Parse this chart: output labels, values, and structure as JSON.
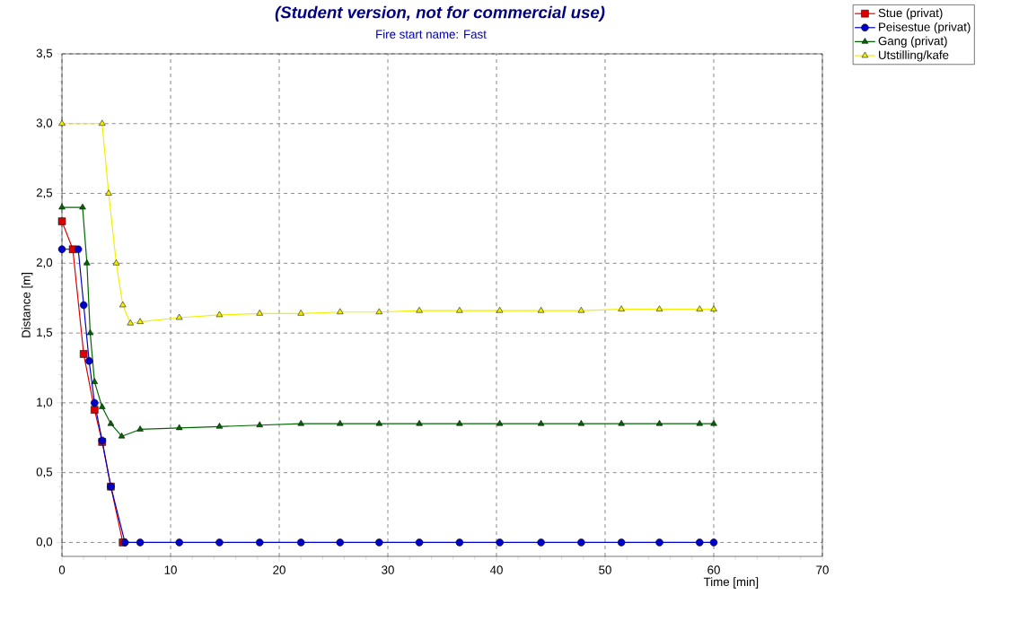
{
  "chart_data": {
    "type": "line",
    "title": "(Student version, not for commercial use)",
    "subtitle": "Fire start name:  Fast",
    "xlabel": "Time [min]",
    "ylabel": "Distance [m]",
    "xlim": [
      0,
      70
    ],
    "xticks": [
      0,
      10,
      20,
      30,
      40,
      50,
      60,
      70
    ],
    "ylim": [
      -0.1,
      3.5
    ],
    "yticks": [
      {
        "value": 0,
        "label": "0,0"
      },
      {
        "value": 0.5,
        "label": "0,5"
      },
      {
        "value": 1,
        "label": "1,0"
      },
      {
        "value": 1.5,
        "label": "1,5"
      },
      {
        "value": 2,
        "label": "2,0"
      },
      {
        "value": 2.5,
        "label": "2,5"
      },
      {
        "value": 3,
        "label": "3,0"
      },
      {
        "value": 3.5,
        "label": "3,5"
      }
    ],
    "grid": true,
    "legend": "top right",
    "line_style": "solid",
    "series": [
      {
        "name": "Stue (privat)",
        "color": "#dd0000",
        "marker": "square",
        "x": [
          0,
          1,
          2,
          3,
          3.7,
          4.5,
          5.6
        ],
        "values": [
          2.3,
          2.1,
          1.35,
          0.95,
          0.72,
          0.4,
          0
        ]
      },
      {
        "name": "Peisestue (privat)",
        "color": "#0000cc",
        "marker": "circle",
        "x": [
          0,
          1.5,
          2,
          2.5,
          3,
          3.7,
          4.5,
          5.8,
          7.2,
          10.8,
          14.5,
          18.2,
          22,
          25.6,
          29.2,
          32.9,
          36.6,
          40.3,
          44.1,
          47.8,
          51.5,
          55,
          58.7,
          60
        ],
        "values": [
          2.1,
          2.1,
          1.7,
          1.3,
          1.0,
          0.73,
          0.4,
          0,
          0,
          0,
          0,
          0,
          0,
          0,
          0,
          0,
          0,
          0,
          0,
          0,
          0,
          0,
          0,
          0
        ]
      },
      {
        "name": "Gang (privat)",
        "color": "#006600",
        "marker": "triangle",
        "x": [
          0,
          1.9,
          2.3,
          2.6,
          3,
          3.7,
          4.5,
          5.5,
          7.2,
          10.8,
          14.5,
          18.2,
          22,
          25.6,
          29.2,
          32.9,
          36.6,
          40.3,
          44.1,
          47.8,
          51.5,
          55,
          58.7,
          60
        ],
        "values": [
          2.4,
          2.4,
          2.0,
          1.5,
          1.15,
          0.97,
          0.85,
          0.76,
          0.81,
          0.82,
          0.83,
          0.84,
          0.85,
          0.85,
          0.85,
          0.85,
          0.85,
          0.85,
          0.85,
          0.85,
          0.85,
          0.85,
          0.85,
          0.85
        ]
      },
      {
        "name": "Utstilling/kafe",
        "color": "#f0f000",
        "marker": "triangle",
        "x": [
          0,
          3.7,
          4.3,
          5,
          5.6,
          6.3,
          7.2,
          10.8,
          14.5,
          18.2,
          22,
          25.6,
          29.2,
          32.9,
          36.6,
          40.3,
          44.1,
          47.8,
          51.5,
          55,
          58.7,
          60
        ],
        "values": [
          3.0,
          3.0,
          2.5,
          2.0,
          1.7,
          1.57,
          1.58,
          1.61,
          1.63,
          1.64,
          1.64,
          1.65,
          1.65,
          1.66,
          1.66,
          1.66,
          1.66,
          1.66,
          1.67,
          1.67,
          1.67,
          1.67
        ]
      }
    ]
  }
}
